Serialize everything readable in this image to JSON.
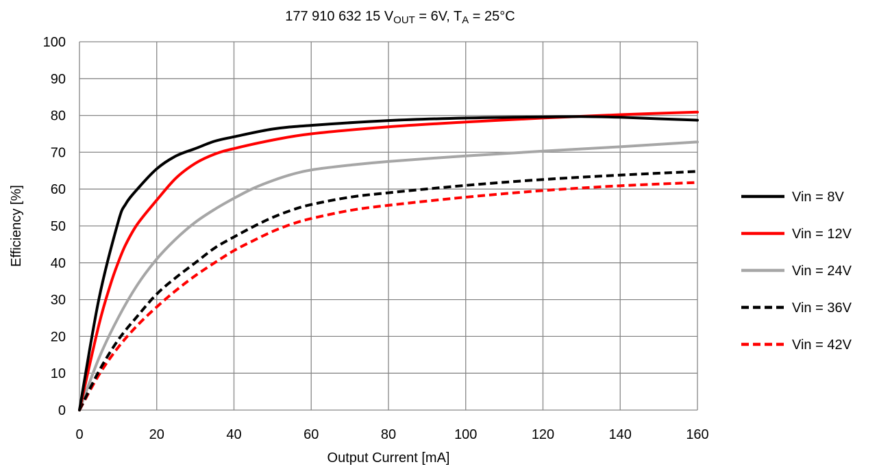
{
  "chart_data": {
    "type": "line",
    "title": {
      "prefix": "177 910 632 15  V",
      "vout_sub": "OUT",
      "middle": " = 6V, T",
      "ta_sub": "A",
      "suffix": " = 25°C"
    },
    "xlabel": "Output Current  [mA]",
    "ylabel": "Efficiency  [%]",
    "xlim": [
      0,
      160
    ],
    "ylim": [
      0,
      100
    ],
    "xticks": [
      0,
      20,
      40,
      60,
      80,
      100,
      120,
      140,
      160
    ],
    "yticks": [
      0,
      10,
      20,
      30,
      40,
      50,
      60,
      70,
      80,
      90,
      100
    ],
    "grid": true,
    "legend_position": "right",
    "series": [
      {
        "name": "Vin = 8V",
        "color": "#000000",
        "style": "solid",
        "width": 4,
        "x": [
          0,
          5,
          10,
          12,
          15,
          20,
          25,
          30,
          35,
          40,
          50,
          60,
          80,
          100,
          120,
          130,
          140,
          150,
          160
        ],
        "y": [
          0,
          30,
          51,
          56,
          60,
          65.5,
          69,
          71,
          73,
          74.2,
          76.3,
          77.3,
          78.6,
          79.3,
          79.6,
          79.7,
          79.5,
          79.1,
          78.7
        ]
      },
      {
        "name": "Vin = 12V",
        "color": "#ff0000",
        "style": "solid",
        "width": 4,
        "x": [
          0,
          5,
          8,
          10,
          12,
          15,
          20,
          25,
          30,
          35,
          40,
          50,
          60,
          80,
          100,
          120,
          140,
          160
        ],
        "y": [
          0,
          23,
          34,
          40,
          45,
          50.5,
          57,
          63,
          67,
          69.5,
          71,
          73.3,
          75,
          76.9,
          78.2,
          79.3,
          80.2,
          80.9
        ]
      },
      {
        "name": "Vin = 24V",
        "color": "#a6a6a6",
        "style": "solid",
        "width": 4,
        "x": [
          0,
          5,
          10,
          15,
          20,
          25,
          30,
          35,
          40,
          45,
          50,
          55,
          60,
          70,
          80,
          100,
          120,
          140,
          160
        ],
        "y": [
          0,
          14,
          25,
          34,
          41,
          46.5,
          51,
          54.5,
          57.5,
          60.2,
          62.3,
          64,
          65.2,
          66.5,
          67.5,
          69,
          70.3,
          71.5,
          72.8
        ]
      },
      {
        "name": "Vin = 36V",
        "color": "#000000",
        "style": "dashed",
        "width": 4,
        "x": [
          0,
          5,
          10,
          15,
          20,
          25,
          30,
          35,
          40,
          45,
          50,
          55,
          60,
          70,
          80,
          100,
          120,
          140,
          160
        ],
        "y": [
          0,
          10.5,
          19,
          25.5,
          31.5,
          36,
          40,
          44,
          47,
          49.8,
          52.3,
          54.3,
          55.8,
          57.8,
          59,
          61,
          62.6,
          63.8,
          64.8
        ]
      },
      {
        "name": "Vin = 42V",
        "color": "#ff0000",
        "style": "dashed",
        "width": 4,
        "x": [
          0,
          5,
          10,
          15,
          20,
          25,
          30,
          35,
          40,
          45,
          50,
          55,
          60,
          70,
          80,
          100,
          120,
          140,
          160
        ],
        "y": [
          0,
          9.5,
          17,
          23,
          28,
          32.5,
          36.5,
          40,
          43.3,
          46,
          48.5,
          50.5,
          52,
          54.2,
          55.6,
          57.8,
          59.6,
          60.9,
          61.8
        ]
      }
    ]
  }
}
